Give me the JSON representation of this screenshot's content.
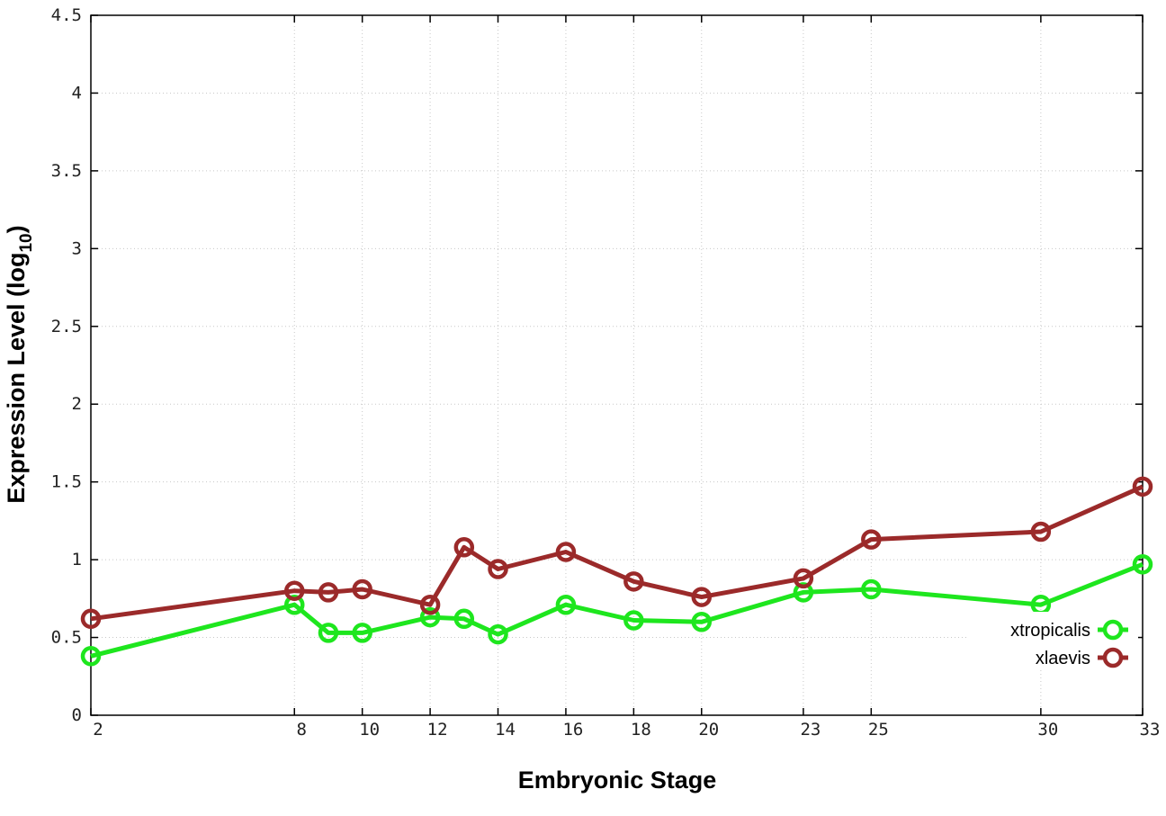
{
  "chart_data": {
    "type": "line",
    "title": "",
    "xlabel": "Embryonic Stage",
    "ylabel_main": "Expression Level (log",
    "ylabel_sub": "10",
    "ylabel_close": ")",
    "xlim": [
      2,
      33
    ],
    "ylim": [
      0,
      4.5
    ],
    "x_ticks": [
      2,
      8,
      10,
      12,
      14,
      16,
      18,
      20,
      23,
      25,
      30,
      33
    ],
    "y_ticks": [
      0,
      0.5,
      1,
      1.5,
      2,
      2.5,
      3,
      3.5,
      4,
      4.5
    ],
    "x_tick_labels": [
      "2",
      "8",
      "10",
      "12",
      "14",
      "16",
      "18",
      "20",
      "23",
      "25",
      "30",
      "33"
    ],
    "y_tick_labels": [
      "0",
      "0.5",
      "1",
      "1.5",
      "2",
      "2.5",
      "3",
      "3.5",
      "4",
      "4.5"
    ],
    "grid": true,
    "legend_position": "lower-right",
    "series": [
      {
        "name": "xtropicalis",
        "color": "#1ee61e",
        "x": [
          2,
          8,
          9,
          10,
          12,
          13,
          14,
          16,
          18,
          20,
          23,
          25,
          30,
          33
        ],
        "y": [
          0.38,
          0.71,
          0.53,
          0.53,
          0.63,
          0.62,
          0.52,
          0.71,
          0.61,
          0.6,
          0.79,
          0.81,
          0.71,
          0.97
        ]
      },
      {
        "name": "xlaevis",
        "color": "#9b2a2a",
        "x": [
          2,
          8,
          9,
          10,
          12,
          13,
          14,
          16,
          18,
          20,
          23,
          25,
          30,
          33
        ],
        "y": [
          0.62,
          0.8,
          0.79,
          0.81,
          0.71,
          1.08,
          0.94,
          1.05,
          0.86,
          0.76,
          0.88,
          1.13,
          1.18,
          1.47
        ]
      }
    ]
  }
}
